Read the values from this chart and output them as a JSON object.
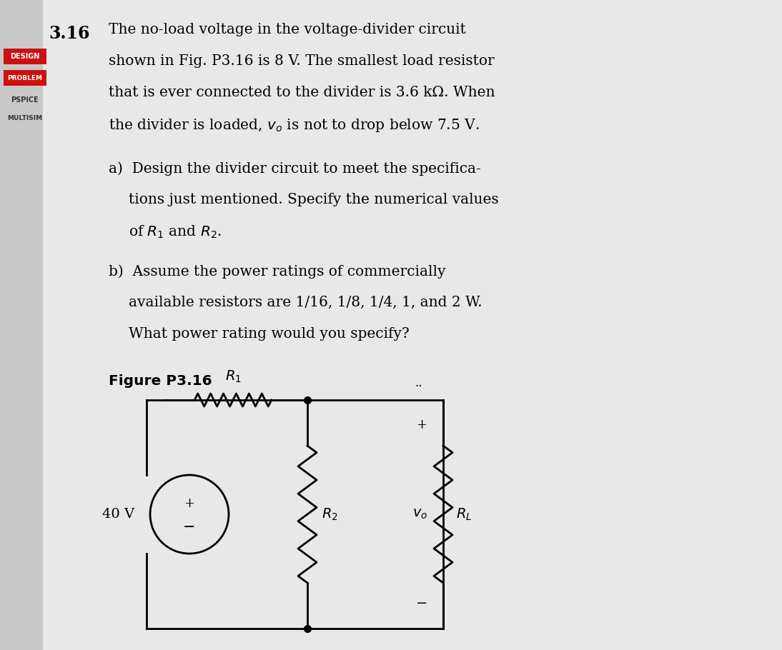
{
  "bg_color": "#e0e0e0",
  "text_color": "#000000",
  "problem_number": "3.16",
  "main_text_lines": [
    "The no-load voltage in the voltage-divider circuit",
    "shown in Fig. P3.16 is 8 V. The smallest load resistor",
    "that is ever connected to the divider is 3.6 kΩ. When",
    "the divider is loaded, $v_o$ is not to drop below 7.5 V."
  ],
  "part_a_line1": "a)  Design the divider circuit to meet the specifica-",
  "part_a_line2": "     tions just mentioned. Specify the numerical values",
  "part_a_line3": "     of $R_1$ and $R_2$.",
  "part_b_line1": "b)  Assume the power ratings of commercially",
  "part_b_line2": "     available resistors are 1/16, 1/8, 1/4, 1, and 2 W.",
  "part_b_line3": "     What power rating would you specify?",
  "figure_label": "Figure P3.16",
  "voltage_source_label": "40 V",
  "R1_label": "$R_1$",
  "R2_label": "$R_2$",
  "RL_label": "$R_L$",
  "vo_label": "$v_o$"
}
